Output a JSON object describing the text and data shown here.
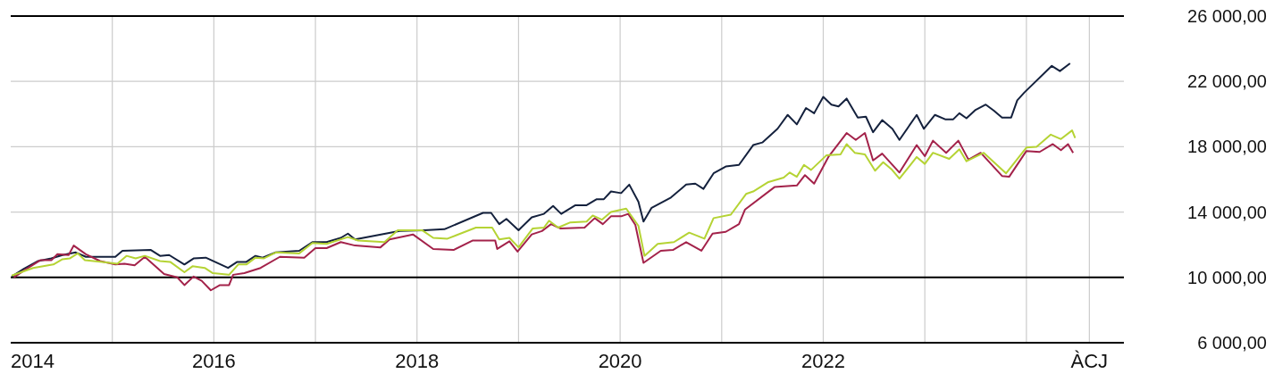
{
  "chart_data": {
    "type": "line",
    "grid": true,
    "xlim": [
      2014,
      2024.96
    ],
    "ylim": [
      6000,
      26000
    ],
    "xticks": [
      2014,
      {
        "value": 2015,
        "label": null
      },
      2016,
      {
        "value": 2017,
        "label": null
      },
      2018,
      {
        "value": 2019,
        "label": null
      },
      2020,
      {
        "value": 2021,
        "label": null
      },
      2022,
      {
        "value": 2023,
        "label": null
      },
      {
        "value": 2024,
        "label": null
      },
      {
        "value": 2024.62,
        "label": "ÀCJ"
      }
    ],
    "yticks": [
      {
        "value": 6000,
        "label": "6 000,00"
      },
      {
        "value": 10000,
        "label": "10 000,00"
      },
      {
        "value": 14000,
        "label": "14 000,00"
      },
      {
        "value": 18000,
        "label": "18 000,00"
      },
      {
        "value": 22000,
        "label": "22 000,00"
      },
      {
        "value": 26000,
        "label": "26 000,00"
      }
    ],
    "ref_lines": [
      {
        "axis": "y",
        "value": 10000,
        "label": null,
        "color": "#000000"
      }
    ],
    "series": [
      {
        "color": "#14213d",
        "x": [
          2014.01,
          2014.13,
          2014.27,
          2014.4,
          2014.51,
          2014.64,
          2014.74,
          2015.03,
          2015.1,
          2015.38,
          2015.47,
          2015.56,
          2015.71,
          2015.8,
          2015.92,
          2016.14,
          2016.23,
          2016.32,
          2016.41,
          2016.48,
          2016.61,
          2016.84,
          2016.97,
          2017.11,
          2017.25,
          2017.32,
          2017.39,
          2017.68,
          2017.83,
          2018.07,
          2018.27,
          2018.65,
          2018.73,
          2018.81,
          2018.88,
          2019.0,
          2019.13,
          2019.25,
          2019.34,
          2019.42,
          2019.56,
          2019.67,
          2019.77,
          2019.84,
          2019.91,
          2020.01,
          2020.09,
          2020.18,
          2020.23,
          2020.31,
          2020.5,
          2020.65,
          2020.74,
          2020.82,
          2020.92,
          2021.04,
          2021.17,
          2021.31,
          2021.4,
          2021.55,
          2021.65,
          2021.74,
          2021.83,
          2021.91,
          2022.0,
          2022.08,
          2022.15,
          2022.23,
          2022.34,
          2022.42,
          2022.49,
          2022.58,
          2022.68,
          2022.75,
          2022.92,
          2022.99,
          2023.1,
          2023.2,
          2023.28,
          2023.34,
          2023.41,
          2023.5,
          2023.6,
          2023.68,
          2023.76,
          2023.85,
          2023.91,
          2023.98,
          2024.25,
          2024.33,
          2024.43
        ],
        "values": [
          10050,
          10530,
          11000,
          11160,
          11370,
          11530,
          11260,
          11260,
          11630,
          11680,
          11320,
          11370,
          10790,
          11160,
          11210,
          10580,
          10950,
          10950,
          11320,
          11210,
          11530,
          11630,
          12160,
          12160,
          12420,
          12680,
          12320,
          null,
          12840,
          12890,
          12950,
          13950,
          13950,
          13260,
          13580,
          12890,
          13680,
          13890,
          14370,
          13890,
          14420,
          14420,
          14790,
          14790,
          15260,
          15160,
          15680,
          14630,
          13420,
          14260,
          14890,
          15680,
          15740,
          15420,
          16370,
          16790,
          16890,
          18100,
          18260,
          19100,
          19950,
          19370,
          20370,
          20050,
          21050,
          20580,
          20470,
          20950,
          19790,
          19840,
          18890,
          19630,
          19100,
          18420,
          19950,
          19100,
          19950,
          19680,
          19680,
          20050,
          19740,
          20260,
          20580,
          20210,
          19790,
          19790,
          20840,
          21320,
          22950,
          22630,
          23100
        ]
      },
      {
        "color": "#a3224a",
        "x": [
          2014.03,
          2014.13,
          2014.29,
          2014.4,
          2014.46,
          2014.57,
          2014.62,
          2014.74,
          2014.88,
          2015.03,
          2015.12,
          2015.22,
          2015.32,
          2015.51,
          2015.64,
          2015.71,
          2015.8,
          2015.88,
          2015.97,
          2016.06,
          2016.15,
          2016.19,
          2016.3,
          2016.46,
          2016.65,
          2016.89,
          2017.0,
          2017.11,
          2017.25,
          2017.39,
          2017.64,
          2017.73,
          2017.96,
          2018.16,
          2018.36,
          2018.55,
          2018.77,
          2018.79,
          2018.91,
          2018.99,
          2019.13,
          2019.23,
          2019.32,
          2019.41,
          2019.65,
          2019.75,
          2019.83,
          2019.91,
          2020.01,
          2020.08,
          2020.15,
          2020.23,
          2020.4,
          2020.52,
          2020.65,
          2020.8,
          2020.91,
          2021.04,
          2021.17,
          2021.23,
          2021.52,
          2021.74,
          2021.82,
          2021.91,
          2022.05,
          2022.23,
          2022.32,
          2022.41,
          2022.49,
          2022.58,
          2022.75,
          2022.92,
          2023.0,
          2023.08,
          2023.21,
          2023.33,
          2023.43,
          2023.55,
          2023.76,
          2023.83,
          2024.0,
          2024.13,
          2024.26,
          2024.34,
          2024.41,
          2024.46
        ],
        "values": [
          10000,
          10420,
          11050,
          11050,
          11420,
          11370,
          11950,
          11420,
          11000,
          10790,
          10840,
          10740,
          11260,
          10210,
          10000,
          9530,
          10050,
          9790,
          9210,
          9530,
          9530,
          10160,
          10260,
          10580,
          11260,
          11210,
          11790,
          11790,
          12160,
          11950,
          11840,
          12320,
          12630,
          11740,
          11680,
          12260,
          12260,
          11740,
          12210,
          11580,
          12630,
          12840,
          13260,
          13000,
          13050,
          13630,
          13260,
          13740,
          13740,
          13890,
          13210,
          10890,
          11630,
          11680,
          12160,
          11630,
          12680,
          12790,
          13260,
          14160,
          15530,
          15630,
          16260,
          15740,
          17370,
          18840,
          18420,
          18840,
          17160,
          17580,
          16420,
          18100,
          17420,
          18370,
          17630,
          18370,
          17210,
          17630,
          16210,
          16160,
          17740,
          17680,
          18160,
          17790,
          18160,
          17630
        ]
      },
      {
        "color": "#b5d334",
        "x": [
          2014.01,
          2014.22,
          2014.42,
          2014.51,
          2014.58,
          2014.66,
          2014.73,
          2014.9,
          2015.05,
          2015.14,
          2015.23,
          2015.32,
          2015.47,
          2015.57,
          2015.71,
          2015.79,
          2015.91,
          2015.99,
          2016.15,
          2016.24,
          2016.32,
          2016.41,
          2016.49,
          2016.61,
          2016.84,
          2016.97,
          2017.11,
          2017.32,
          2017.42,
          2017.68,
          2017.81,
          2018.05,
          2018.16,
          2018.3,
          2018.58,
          2018.74,
          2018.81,
          2018.91,
          2019.0,
          2019.14,
          2019.25,
          2019.3,
          2019.39,
          2019.51,
          2019.67,
          2019.73,
          2019.82,
          2019.91,
          2020.06,
          2020.18,
          2020.24,
          2020.37,
          2020.53,
          2020.68,
          2020.83,
          2020.92,
          2021.09,
          2021.24,
          2021.31,
          2021.46,
          2021.61,
          2021.67,
          2021.74,
          2021.81,
          2021.88,
          2022.03,
          2022.17,
          2022.23,
          2022.31,
          2022.41,
          2022.51,
          2022.59,
          2022.67,
          2022.75,
          2022.92,
          2023.0,
          2023.08,
          2023.24,
          2023.34,
          2023.41,
          2023.58,
          2023.8,
          2024.0,
          2024.1,
          2024.24,
          2024.34,
          2024.45,
          2024.48
        ],
        "values": [
          10110,
          10580,
          10790,
          11110,
          11160,
          11470,
          11050,
          10950,
          10840,
          11320,
          11160,
          11320,
          11000,
          10950,
          10320,
          10680,
          10580,
          10260,
          10160,
          10790,
          10790,
          11210,
          11160,
          11530,
          11470,
          12110,
          12050,
          12470,
          12260,
          12160,
          12890,
          12890,
          12420,
          12370,
          13050,
          13050,
          12320,
          12420,
          11840,
          13000,
          13050,
          13470,
          13050,
          13370,
          13420,
          13790,
          13530,
          14000,
          14210,
          13160,
          11320,
          12050,
          12160,
          12740,
          12370,
          13630,
          13840,
          15110,
          15260,
          15840,
          16110,
          16420,
          16160,
          16890,
          16580,
          17470,
          17530,
          18160,
          17630,
          17530,
          16530,
          17050,
          16630,
          16050,
          17370,
          16950,
          17630,
          17260,
          17840,
          17110,
          17630,
          16370,
          17950,
          18000,
          18740,
          18470,
          19000,
          18530
        ]
      }
    ]
  }
}
